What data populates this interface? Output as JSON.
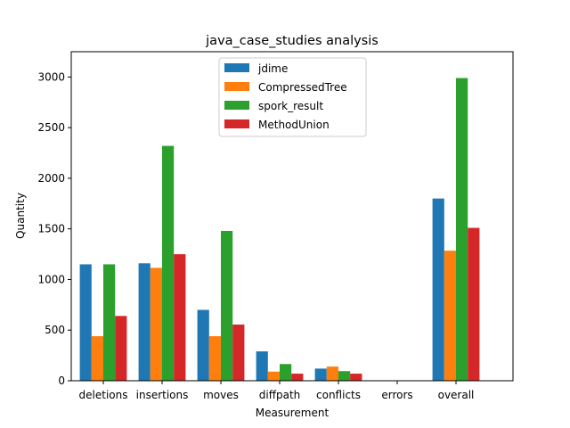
{
  "chart_data": {
    "type": "bar",
    "title": "java_case_studies analysis",
    "xlabel": "Measurement",
    "ylabel": "Quantity",
    "ylim": [
      0,
      3250
    ],
    "yticks": [
      0,
      500,
      1000,
      1500,
      2000,
      2500,
      3000
    ],
    "categories": [
      "deletions",
      "insertions",
      "moves",
      "diffpath",
      "conflicts",
      "errors",
      "overall"
    ],
    "legend_position": "top-center",
    "grid": false,
    "series": [
      {
        "name": "jdime",
        "color": "#1f77b4",
        "values": [
          1150,
          1160,
          700,
          290,
          120,
          0,
          1800
        ]
      },
      {
        "name": "CompressedTree",
        "color": "#ff7f0e",
        "values": [
          440,
          1115,
          440,
          90,
          140,
          0,
          1285
        ]
      },
      {
        "name": "spork_result",
        "color": "#2ca02c",
        "values": [
          1150,
          2320,
          1480,
          165,
          95,
          0,
          2990
        ]
      },
      {
        "name": "MethodUnion",
        "color": "#d62728",
        "values": [
          640,
          1250,
          555,
          70,
          70,
          0,
          1510
        ]
      }
    ]
  }
}
